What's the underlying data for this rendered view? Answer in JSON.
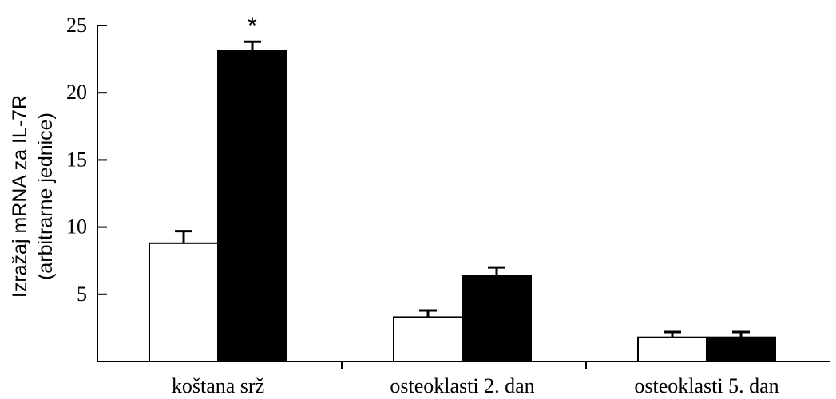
{
  "chart_data": {
    "type": "bar",
    "categories": [
      "koštana srž",
      "osteoklasti 2. dan",
      "osteoklasti 5. dan"
    ],
    "series": [
      {
        "color": "#ffffff",
        "values": [
          8.8,
          3.3,
          1.8
        ],
        "errors": [
          0.9,
          0.5,
          0.4
        ]
      },
      {
        "color": "#000000",
        "values": [
          23.1,
          6.4,
          1.8
        ],
        "errors": [
          0.7,
          0.6,
          0.4
        ]
      }
    ],
    "title": "",
    "xlabel": "",
    "ylabel": [
      "Izražaj mRNA za IL-7R",
      "(arbitrarne jednice)"
    ],
    "ylim": [
      0,
      25
    ],
    "yticks": [
      5,
      10,
      15,
      20,
      25
    ],
    "grid": false,
    "legend": "none",
    "annotations": [
      {
        "text": "*",
        "category": 0,
        "series": 1
      }
    ]
  }
}
